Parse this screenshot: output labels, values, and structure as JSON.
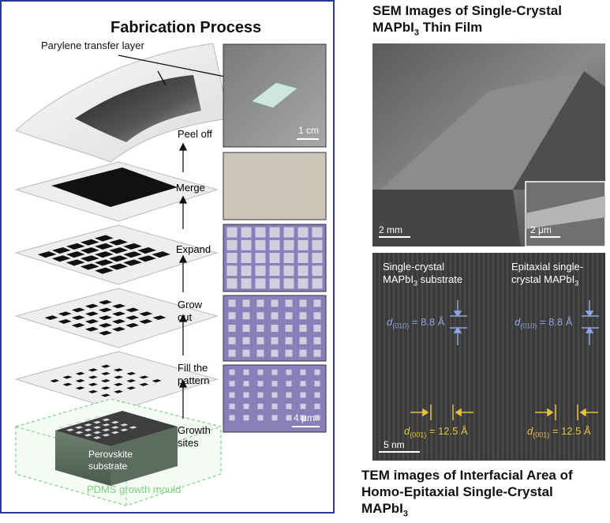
{
  "fabrication": {
    "title": "Fabrication Process",
    "transfer_layer_label": "Parylene transfer layer",
    "steps": [
      {
        "lines": [
          "Peel off"
        ]
      },
      {
        "lines": [
          "Merge"
        ]
      },
      {
        "lines": [
          "Expand"
        ]
      },
      {
        "lines": [
          "Grow",
          "out"
        ]
      },
      {
        "lines": [
          "Fill the",
          "pattern"
        ]
      },
      {
        "lines": [
          "Growth",
          "sites"
        ]
      }
    ],
    "substrate_label_1": "Perovskite",
    "substrate_label_2": "substrate",
    "mould_label": "PDMS growth mould",
    "scale_peel": "1 cm",
    "scale_growth": "4 μm"
  },
  "sem": {
    "title_line1": "SEM Images of Single-Crystal",
    "title_line2_prefix": "MAPbI",
    "title_line2_sub": "3",
    "title_line2_suffix": " Thin Film",
    "scale_main": "2 mm",
    "scale_inset": "2 μm"
  },
  "tem": {
    "label_left_1": "Single-crystal",
    "label_left_2_prefix": "MAPbI",
    "label_left_2_sub": "3",
    "label_left_2_suffix": " substrate",
    "label_right_1": "Epitaxial single-",
    "label_right_2_prefix": "crystal MAPbI",
    "label_right_2_sub": "3",
    "d010_sub": "(010)",
    "d010_value": " = 8.8 Å",
    "d001_sub": "(001)",
    "d001_value": " = 12.5 Å",
    "scale": "5 nm",
    "caption_line1": "TEM images of Interfacial Area of",
    "caption_line2": "Homo-Epitaxial Single-Crystal",
    "caption_line3_prefix": "MAPbI",
    "caption_line3_sub": "3"
  },
  "colors": {
    "frame": "#2a3a8c",
    "tem_blue": "#8fa6e0",
    "tem_yellow": "#e8c23c",
    "mould_green": "#7fcf7f",
    "purple_photo": "#8a7fb8"
  }
}
